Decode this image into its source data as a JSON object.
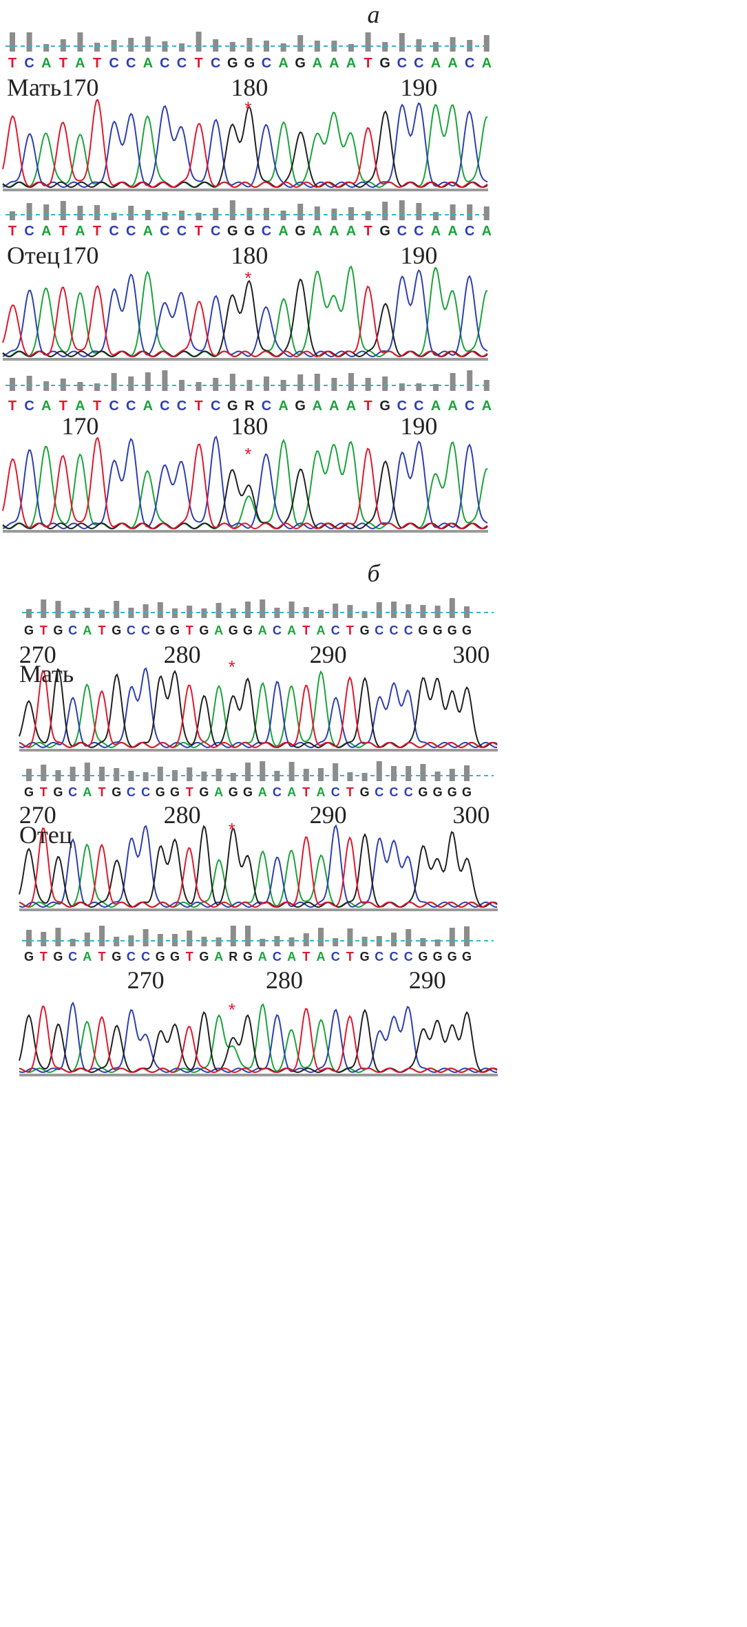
{
  "figure": {
    "sections": [
      {
        "label": "а",
        "panels": [
          {
            "person": "Мать",
            "bases": "TCATATCCACCTCGGCAGAAATGCCAACA",
            "positions": [
              {
                "text": "170",
                "idx": 4
              },
              {
                "text": "180",
                "idx": 14
              },
              {
                "text": "190",
                "idx": 24
              }
            ],
            "mark": "*",
            "markIdx": 14,
            "hetIdx": null
          },
          {
            "person": "Отец",
            "bases": "TCATATCCACCTCGGCAGAAATGCCAACA",
            "positions": [
              {
                "text": "170",
                "idx": 4
              },
              {
                "text": "180",
                "idx": 14
              },
              {
                "text": "190",
                "idx": 24
              }
            ],
            "mark": "*",
            "markIdx": 14,
            "hetIdx": null
          },
          {
            "person": "",
            "bases": "TCATATCCACCTCGRCAGAAATGCCAACA",
            "positions": [
              {
                "text": "170",
                "idx": 4
              },
              {
                "text": "180",
                "idx": 14
              },
              {
                "text": "190",
                "idx": 24
              }
            ],
            "mark": "*",
            "markIdx": 14,
            "hetIdx": 14
          }
        ]
      },
      {
        "label": "б",
        "panels": [
          {
            "person": "Мать",
            "bases": "GTGCATGCCGGTGAGGACATACTGCCCGGGG",
            "positions": [
              {
                "text": "270",
                "idx": 0.6
              },
              {
                "text": "280",
                "idx": 10.5
              },
              {
                "text": "290",
                "idx": 20.5
              },
              {
                "text": "300",
                "idx": 30.3
              }
            ],
            "mark": "*",
            "markIdx": 14,
            "hetIdx": null
          },
          {
            "person": "Отец",
            "bases": "GTGCATGCCGGTGAGGACATACTGCCCGGGG",
            "positions": [
              {
                "text": "270",
                "idx": 0.6
              },
              {
                "text": "280",
                "idx": 10.5
              },
              {
                "text": "290",
                "idx": 20.5
              },
              {
                "text": "300",
                "idx": 30.3
              }
            ],
            "mark": "*",
            "markIdx": 14,
            "hetIdx": null
          },
          {
            "person": "",
            "bases": "GTGCATGCCGGTGARGACATACTGCCCGGGG",
            "positions": [
              {
                "text": "270",
                "idx": 8
              },
              {
                "text": "280",
                "idx": 17.5
              },
              {
                "text": "290",
                "idx": 27.3
              }
            ],
            "mark": "*",
            "markIdx": 14,
            "hetIdx": 14
          }
        ]
      }
    ],
    "colors": {
      "A": "#1aa33a",
      "C": "#2d3fb0",
      "G": "#202020",
      "T": "#e0182c",
      "R": "#202020",
      "dash": "#2bb8c8",
      "bar": "#8c8c8c",
      "mark": "#e0182c"
    }
  }
}
